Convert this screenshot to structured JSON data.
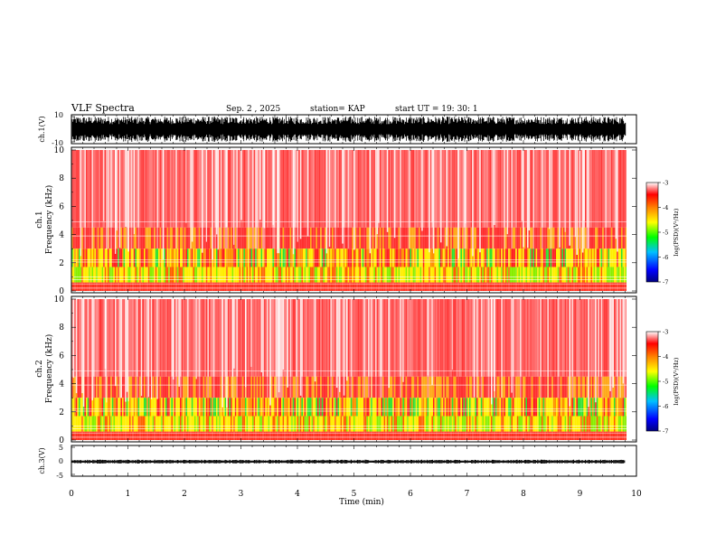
{
  "header": {
    "title": "VLF Spectra",
    "date": "Sep. 2 , 2025",
    "station": "station= KAP",
    "start": "start  UT  =   19: 30: 1"
  },
  "chart_data": [
    {
      "type": "line",
      "panel": "ch1-waveform",
      "ylabel": "ch.1(V)",
      "ylim": [
        -10,
        10
      ],
      "yticks": [
        "10",
        "-10"
      ],
      "xlim": [
        0,
        10
      ],
      "description_values": {
        "signal_max": 10,
        "signal_min": -10
      }
    },
    {
      "type": "heatmap",
      "panel": "ch1-spectrogram",
      "ylabel": "ch.1\nFrequency  (kHz)",
      "ylabel_line1": "ch.1",
      "ylabel_line2": "Frequency  (kHz)",
      "ylim": [
        0,
        10
      ],
      "yticks": [
        "0",
        "2",
        "4",
        "6",
        "8",
        "10"
      ],
      "xlim": [
        0,
        9.8
      ]
    },
    {
      "type": "heatmap",
      "panel": "ch2-spectrogram",
      "ylabel_line1": "ch.2",
      "ylabel_line2": "Frequency  (kHz)",
      "ylim": [
        0,
        10
      ],
      "yticks": [
        "0",
        "2",
        "4",
        "6",
        "8",
        "10"
      ],
      "xlim": [
        0,
        9.8
      ]
    },
    {
      "type": "line",
      "panel": "ch3-waveform",
      "ylabel": "ch.3(V)",
      "ylim": [
        -5,
        5
      ],
      "yticks": [
        "5",
        "0",
        "-5"
      ],
      "xlim": [
        0,
        10
      ],
      "description_values": {
        "signal_level": -0.3
      }
    }
  ],
  "x_axis": {
    "label": "Time  (min)",
    "range": [
      0,
      10
    ],
    "ticks": [
      "0",
      "1",
      "2",
      "3",
      "4",
      "5",
      "6",
      "7",
      "8",
      "9",
      "10"
    ]
  },
  "colorbars": [
    {
      "label": "log(PSD)(V²/Hz)",
      "range": [
        -7,
        -3
      ],
      "ticks": [
        "-3",
        "-4",
        "-5",
        "-6",
        "-7"
      ]
    },
    {
      "label": "log(PSD)(V²/Hz)",
      "range": [
        -7,
        -3
      ],
      "ticks": [
        "-3",
        "-4",
        "-5",
        "-6",
        "-7"
      ]
    }
  ],
  "colors": {
    "noise_high": "#ff2020",
    "noise_mid": "#ffdd00",
    "noise_low": "#00ff00",
    "background": "#ffffff"
  }
}
